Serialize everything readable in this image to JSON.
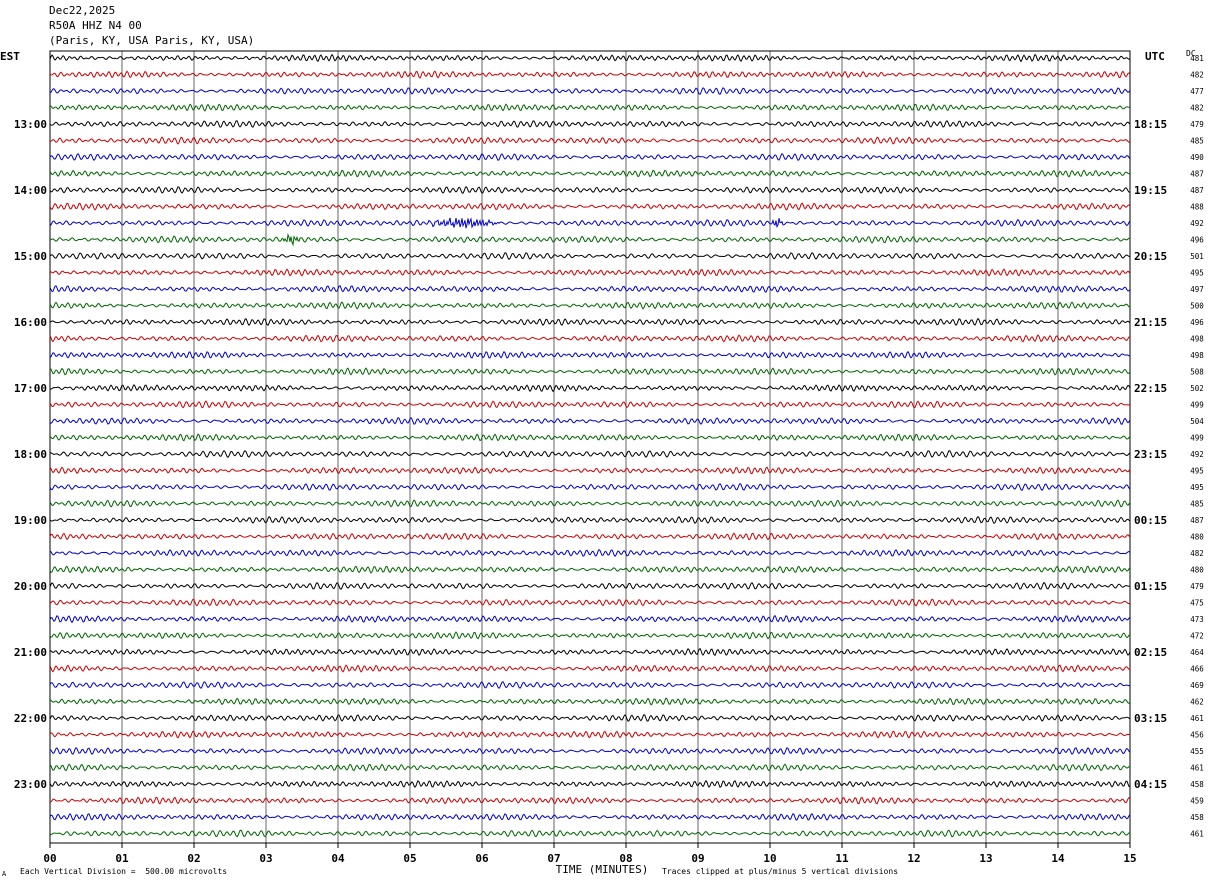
{
  "header": {
    "date": "Dec22,2025",
    "station": "R50A HHZ N4 00",
    "location": "(Paris, KY, USA Paris, KY, USA)"
  },
  "left_timezone": "EST",
  "right_timezone": "UTC",
  "dc_label": "DC",
  "footer": {
    "scale_note": "Each Vertical Division =  500.00 microvolts",
    "clip_note": "Traces clipped at plus/minus 5 vertical divisions",
    "corner_mark": "A"
  },
  "colors": {
    "trace_cycle": [
      "#000000",
      "#cc0000",
      "#0000cc",
      "#006600"
    ],
    "grid": "#000000"
  },
  "chart_data": {
    "type": "line",
    "title": "",
    "xlabel": "TIME (MINUTES)",
    "ylabel": "",
    "xlim": [
      0,
      15
    ],
    "x_ticks": [
      "00",
      "01",
      "02",
      "03",
      "04",
      "05",
      "06",
      "07",
      "08",
      "09",
      "10",
      "11",
      "12",
      "13",
      "14",
      "15"
    ],
    "left_hour_labels": [
      "13:00",
      "14:00",
      "15:00",
      "16:00",
      "17:00",
      "18:00",
      "19:00",
      "20:00",
      "21:00",
      "22:00",
      "23:00"
    ],
    "right_hour_labels": [
      "18:15",
      "19:15",
      "20:15",
      "21:15",
      "22:15",
      "23:15",
      "00:15",
      "01:15",
      "02:15",
      "03:15",
      "04:15"
    ],
    "traces_per_hour": 4,
    "trace_count": 48,
    "dc_offsets": [
      481,
      482,
      477,
      482,
      479,
      485,
      490,
      487,
      487,
      488,
      492,
      496,
      501,
      495,
      497,
      500,
      496,
      498,
      498,
      508,
      502,
      499,
      504,
      499,
      492,
      495,
      495,
      485,
      487,
      480,
      482,
      480,
      479,
      475,
      473,
      472,
      464,
      466,
      469,
      462,
      461,
      456,
      455,
      461,
      458,
      459,
      458,
      461
    ],
    "events": [
      {
        "trace": 10,
        "minute_start": 5.2,
        "minute_end": 6.3,
        "description": ""
      },
      {
        "trace": 10,
        "minute_start": 10.0,
        "minute_end": 10.2,
        "description": ""
      },
      {
        "trace": 11,
        "minute_start": 3.2,
        "minute_end": 3.5,
        "description": ""
      }
    ]
  }
}
